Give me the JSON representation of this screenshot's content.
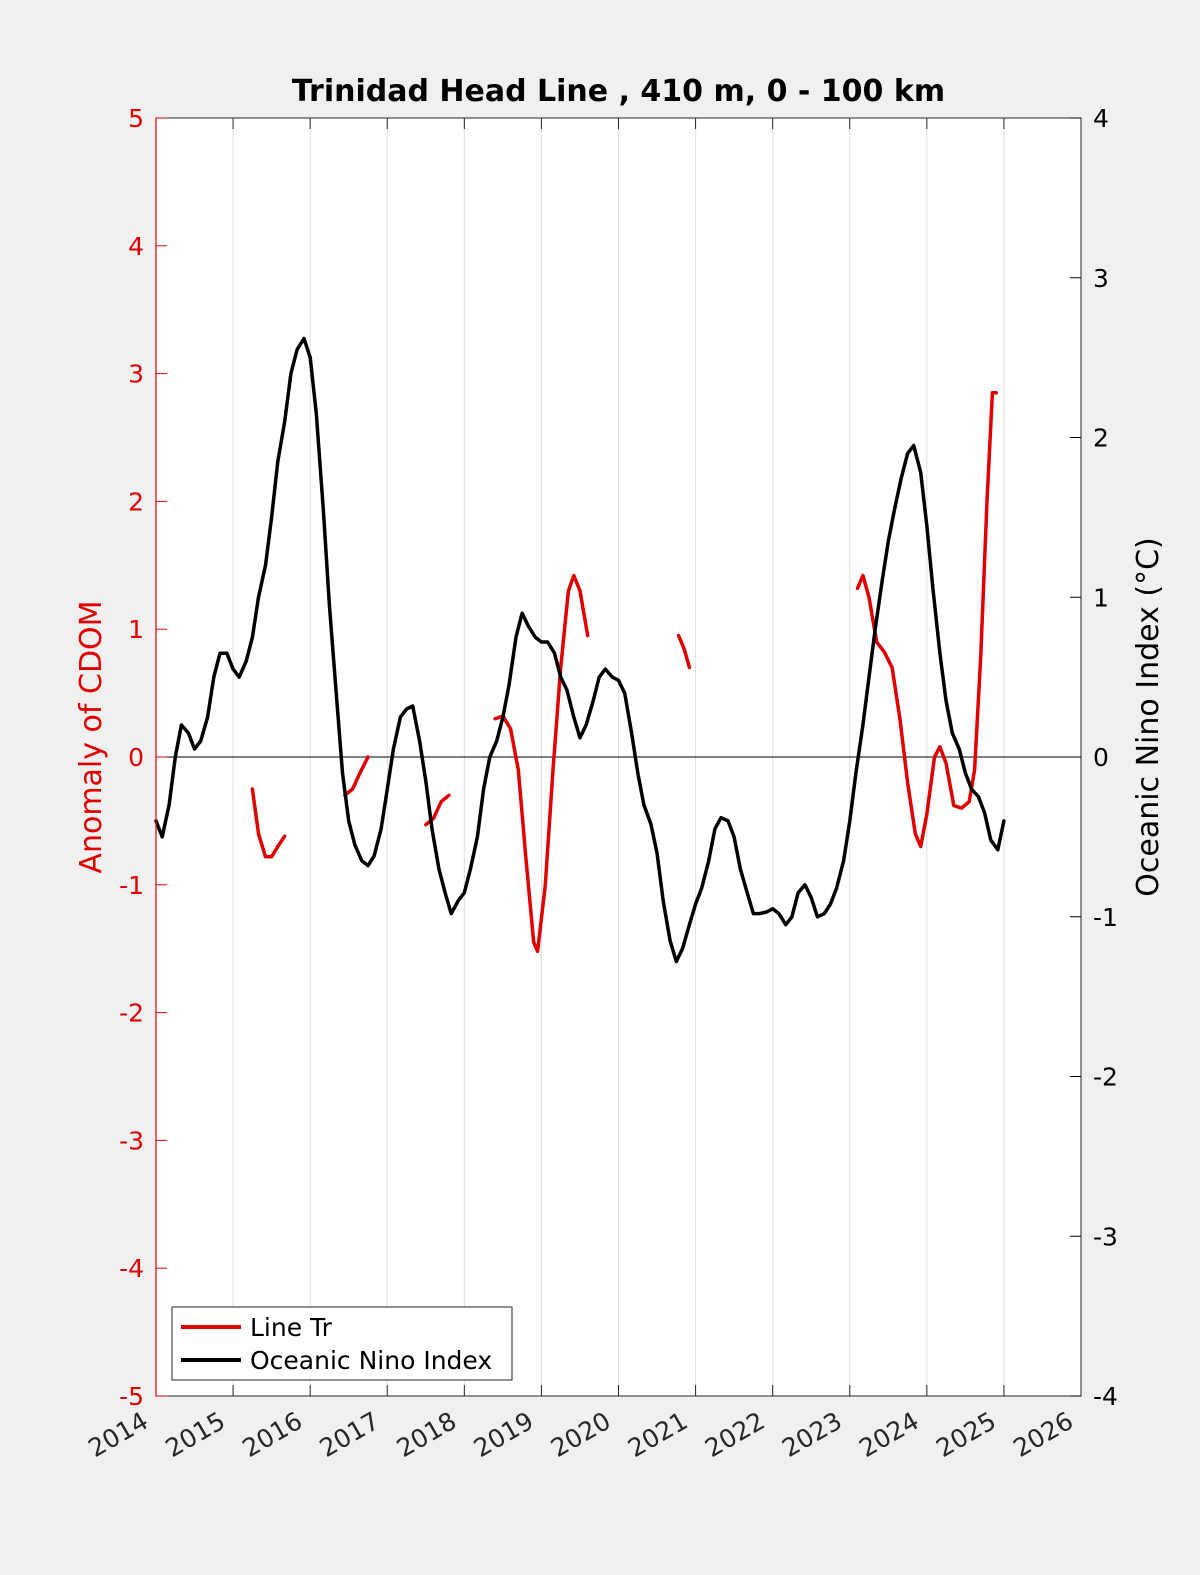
{
  "chart_data": {
    "type": "line",
    "title": "Trinidad Head Line , 410 m, 0 - 100 km",
    "xlabel": "",
    "ylabel_left": "Anomaly of CDOM",
    "ylabel_right": "Oceanic Nino Index (°C)",
    "xlim": [
      2014,
      2026
    ],
    "ylim_left": [
      -5,
      5
    ],
    "ylim_right": [
      -4,
      4
    ],
    "x_ticks": [
      "2014",
      "2015",
      "2016",
      "2017",
      "2018",
      "2019",
      "2020",
      "2021",
      "2022",
      "2023",
      "2024",
      "2025",
      "2026"
    ],
    "y_ticks_left": [
      "5",
      "4",
      "3",
      "2",
      "1",
      "0",
      "-1",
      "-2",
      "-3",
      "-4",
      "-5"
    ],
    "y_ticks_right": [
      "4",
      "3",
      "2",
      "1",
      "0",
      "-1",
      "-2",
      "-3",
      "-4"
    ],
    "grid": "vertical",
    "legend_position": "bottom-left",
    "colors": {
      "line_tr": "#e00000",
      "oni": "#000000",
      "left_axis": "#e00000",
      "right_axis": "#000000"
    },
    "series": [
      {
        "name": "Line Tr",
        "axis": "left",
        "color": "#e00000",
        "segments": [
          [
            [
              2015.25,
              -0.25
            ],
            [
              2015.33,
              -0.6
            ],
            [
              2015.42,
              -0.78
            ],
            [
              2015.5,
              -0.78
            ],
            [
              2015.58,
              -0.7
            ],
            [
              2015.67,
              -0.62
            ]
          ],
          [
            [
              2016.45,
              -0.3
            ],
            [
              2016.55,
              -0.25
            ],
            [
              2016.65,
              -0.12
            ],
            [
              2016.75,
              0.0
            ]
          ],
          [
            [
              2017.5,
              -0.53
            ],
            [
              2017.6,
              -0.48
            ],
            [
              2017.7,
              -0.35
            ],
            [
              2017.8,
              -0.3
            ]
          ],
          [
            [
              2018.4,
              0.3
            ],
            [
              2018.5,
              0.32
            ],
            [
              2018.6,
              0.22
            ],
            [
              2018.7,
              -0.1
            ],
            [
              2018.8,
              -0.8
            ],
            [
              2018.9,
              -1.45
            ],
            [
              2018.95,
              -1.52
            ],
            [
              2019.05,
              -1.0
            ],
            [
              2019.15,
              -0.1
            ],
            [
              2019.25,
              0.7
            ],
            [
              2019.35,
              1.3
            ],
            [
              2019.42,
              1.42
            ],
            [
              2019.5,
              1.3
            ],
            [
              2019.6,
              0.95
            ]
          ],
          [
            [
              2020.78,
              0.95
            ],
            [
              2020.85,
              0.85
            ],
            [
              2020.92,
              0.7
            ]
          ],
          [
            [
              2023.1,
              1.32
            ],
            [
              2023.17,
              1.42
            ],
            [
              2023.25,
              1.25
            ],
            [
              2023.35,
              0.9
            ],
            [
              2023.45,
              0.82
            ],
            [
              2023.55,
              0.7
            ],
            [
              2023.65,
              0.3
            ],
            [
              2023.75,
              -0.2
            ],
            [
              2023.85,
              -0.6
            ],
            [
              2023.92,
              -0.7
            ],
            [
              2024.0,
              -0.45
            ],
            [
              2024.1,
              0.0
            ],
            [
              2024.17,
              0.08
            ],
            [
              2024.25,
              -0.05
            ],
            [
              2024.35,
              -0.38
            ],
            [
              2024.45,
              -0.4
            ],
            [
              2024.55,
              -0.35
            ],
            [
              2024.62,
              -0.1
            ],
            [
              2024.7,
              0.8
            ],
            [
              2024.78,
              2.0
            ],
            [
              2024.85,
              2.85
            ],
            [
              2024.9,
              2.85
            ]
          ]
        ]
      },
      {
        "name": "Oceanic Nino Index",
        "axis": "right",
        "color": "#000000",
        "points": [
          [
            2014.0,
            -0.4
          ],
          [
            2014.08,
            -0.5
          ],
          [
            2014.17,
            -0.3
          ],
          [
            2014.25,
            0.0
          ],
          [
            2014.33,
            0.2
          ],
          [
            2014.42,
            0.15
          ],
          [
            2014.5,
            0.05
          ],
          [
            2014.58,
            0.1
          ],
          [
            2014.67,
            0.25
          ],
          [
            2014.75,
            0.5
          ],
          [
            2014.83,
            0.65
          ],
          [
            2014.92,
            0.65
          ],
          [
            2015.0,
            0.55
          ],
          [
            2015.08,
            0.5
          ],
          [
            2015.17,
            0.6
          ],
          [
            2015.25,
            0.75
          ],
          [
            2015.33,
            1.0
          ],
          [
            2015.42,
            1.2
          ],
          [
            2015.5,
            1.5
          ],
          [
            2015.58,
            1.85
          ],
          [
            2015.67,
            2.1
          ],
          [
            2015.75,
            2.4
          ],
          [
            2015.83,
            2.55
          ],
          [
            2015.92,
            2.62
          ],
          [
            2016.0,
            2.5
          ],
          [
            2016.08,
            2.15
          ],
          [
            2016.17,
            1.55
          ],
          [
            2016.25,
            0.95
          ],
          [
            2016.33,
            0.45
          ],
          [
            2016.42,
            -0.1
          ],
          [
            2016.5,
            -0.4
          ],
          [
            2016.58,
            -0.55
          ],
          [
            2016.67,
            -0.65
          ],
          [
            2016.75,
            -0.68
          ],
          [
            2016.83,
            -0.62
          ],
          [
            2016.92,
            -0.45
          ],
          [
            2017.0,
            -0.2
          ],
          [
            2017.08,
            0.05
          ],
          [
            2017.17,
            0.25
          ],
          [
            2017.25,
            0.3
          ],
          [
            2017.33,
            0.32
          ],
          [
            2017.42,
            0.1
          ],
          [
            2017.5,
            -0.15
          ],
          [
            2017.58,
            -0.45
          ],
          [
            2017.67,
            -0.7
          ],
          [
            2017.75,
            -0.85
          ],
          [
            2017.83,
            -0.98
          ],
          [
            2017.92,
            -0.9
          ],
          [
            2018.0,
            -0.85
          ],
          [
            2018.08,
            -0.7
          ],
          [
            2018.17,
            -0.5
          ],
          [
            2018.25,
            -0.2
          ],
          [
            2018.33,
            0.0
          ],
          [
            2018.42,
            0.1
          ],
          [
            2018.5,
            0.25
          ],
          [
            2018.58,
            0.45
          ],
          [
            2018.67,
            0.75
          ],
          [
            2018.75,
            0.9
          ],
          [
            2018.83,
            0.82
          ],
          [
            2018.92,
            0.75
          ],
          [
            2019.0,
            0.72
          ],
          [
            2019.08,
            0.72
          ],
          [
            2019.17,
            0.65
          ],
          [
            2019.25,
            0.5
          ],
          [
            2019.33,
            0.42
          ],
          [
            2019.42,
            0.25
          ],
          [
            2019.5,
            0.12
          ],
          [
            2019.58,
            0.2
          ],
          [
            2019.67,
            0.35
          ],
          [
            2019.75,
            0.5
          ],
          [
            2019.83,
            0.55
          ],
          [
            2019.92,
            0.5
          ],
          [
            2020.0,
            0.48
          ],
          [
            2020.08,
            0.4
          ],
          [
            2020.17,
            0.15
          ],
          [
            2020.25,
            -0.1
          ],
          [
            2020.33,
            -0.3
          ],
          [
            2020.42,
            -0.42
          ],
          [
            2020.5,
            -0.6
          ],
          [
            2020.58,
            -0.9
          ],
          [
            2020.67,
            -1.15
          ],
          [
            2020.75,
            -1.28
          ],
          [
            2020.83,
            -1.2
          ],
          [
            2020.92,
            -1.05
          ],
          [
            2021.0,
            -0.92
          ],
          [
            2021.08,
            -0.82
          ],
          [
            2021.17,
            -0.65
          ],
          [
            2021.25,
            -0.45
          ],
          [
            2021.33,
            -0.38
          ],
          [
            2021.42,
            -0.4
          ],
          [
            2021.5,
            -0.5
          ],
          [
            2021.58,
            -0.7
          ],
          [
            2021.67,
            -0.85
          ],
          [
            2021.75,
            -0.98
          ],
          [
            2021.83,
            -0.98
          ],
          [
            2021.92,
            -0.97
          ],
          [
            2022.0,
            -0.95
          ],
          [
            2022.08,
            -0.98
          ],
          [
            2022.17,
            -1.05
          ],
          [
            2022.25,
            -1.0
          ],
          [
            2022.33,
            -0.85
          ],
          [
            2022.42,
            -0.8
          ],
          [
            2022.5,
            -0.88
          ],
          [
            2022.58,
            -1.0
          ],
          [
            2022.67,
            -0.98
          ],
          [
            2022.75,
            -0.92
          ],
          [
            2022.83,
            -0.82
          ],
          [
            2022.92,
            -0.65
          ],
          [
            2023.0,
            -0.4
          ],
          [
            2023.08,
            -0.1
          ],
          [
            2023.17,
            0.2
          ],
          [
            2023.25,
            0.5
          ],
          [
            2023.33,
            0.8
          ],
          [
            2023.42,
            1.1
          ],
          [
            2023.5,
            1.35
          ],
          [
            2023.58,
            1.55
          ],
          [
            2023.67,
            1.75
          ],
          [
            2023.75,
            1.9
          ],
          [
            2023.83,
            1.95
          ],
          [
            2023.92,
            1.78
          ],
          [
            2024.0,
            1.45
          ],
          [
            2024.08,
            1.05
          ],
          [
            2024.17,
            0.65
          ],
          [
            2024.25,
            0.35
          ],
          [
            2024.33,
            0.15
          ],
          [
            2024.42,
            0.05
          ],
          [
            2024.5,
            -0.1
          ],
          [
            2024.58,
            -0.2
          ],
          [
            2024.67,
            -0.25
          ],
          [
            2024.75,
            -0.35
          ],
          [
            2024.83,
            -0.52
          ],
          [
            2024.92,
            -0.58
          ],
          [
            2025.0,
            -0.4
          ]
        ]
      }
    ]
  }
}
